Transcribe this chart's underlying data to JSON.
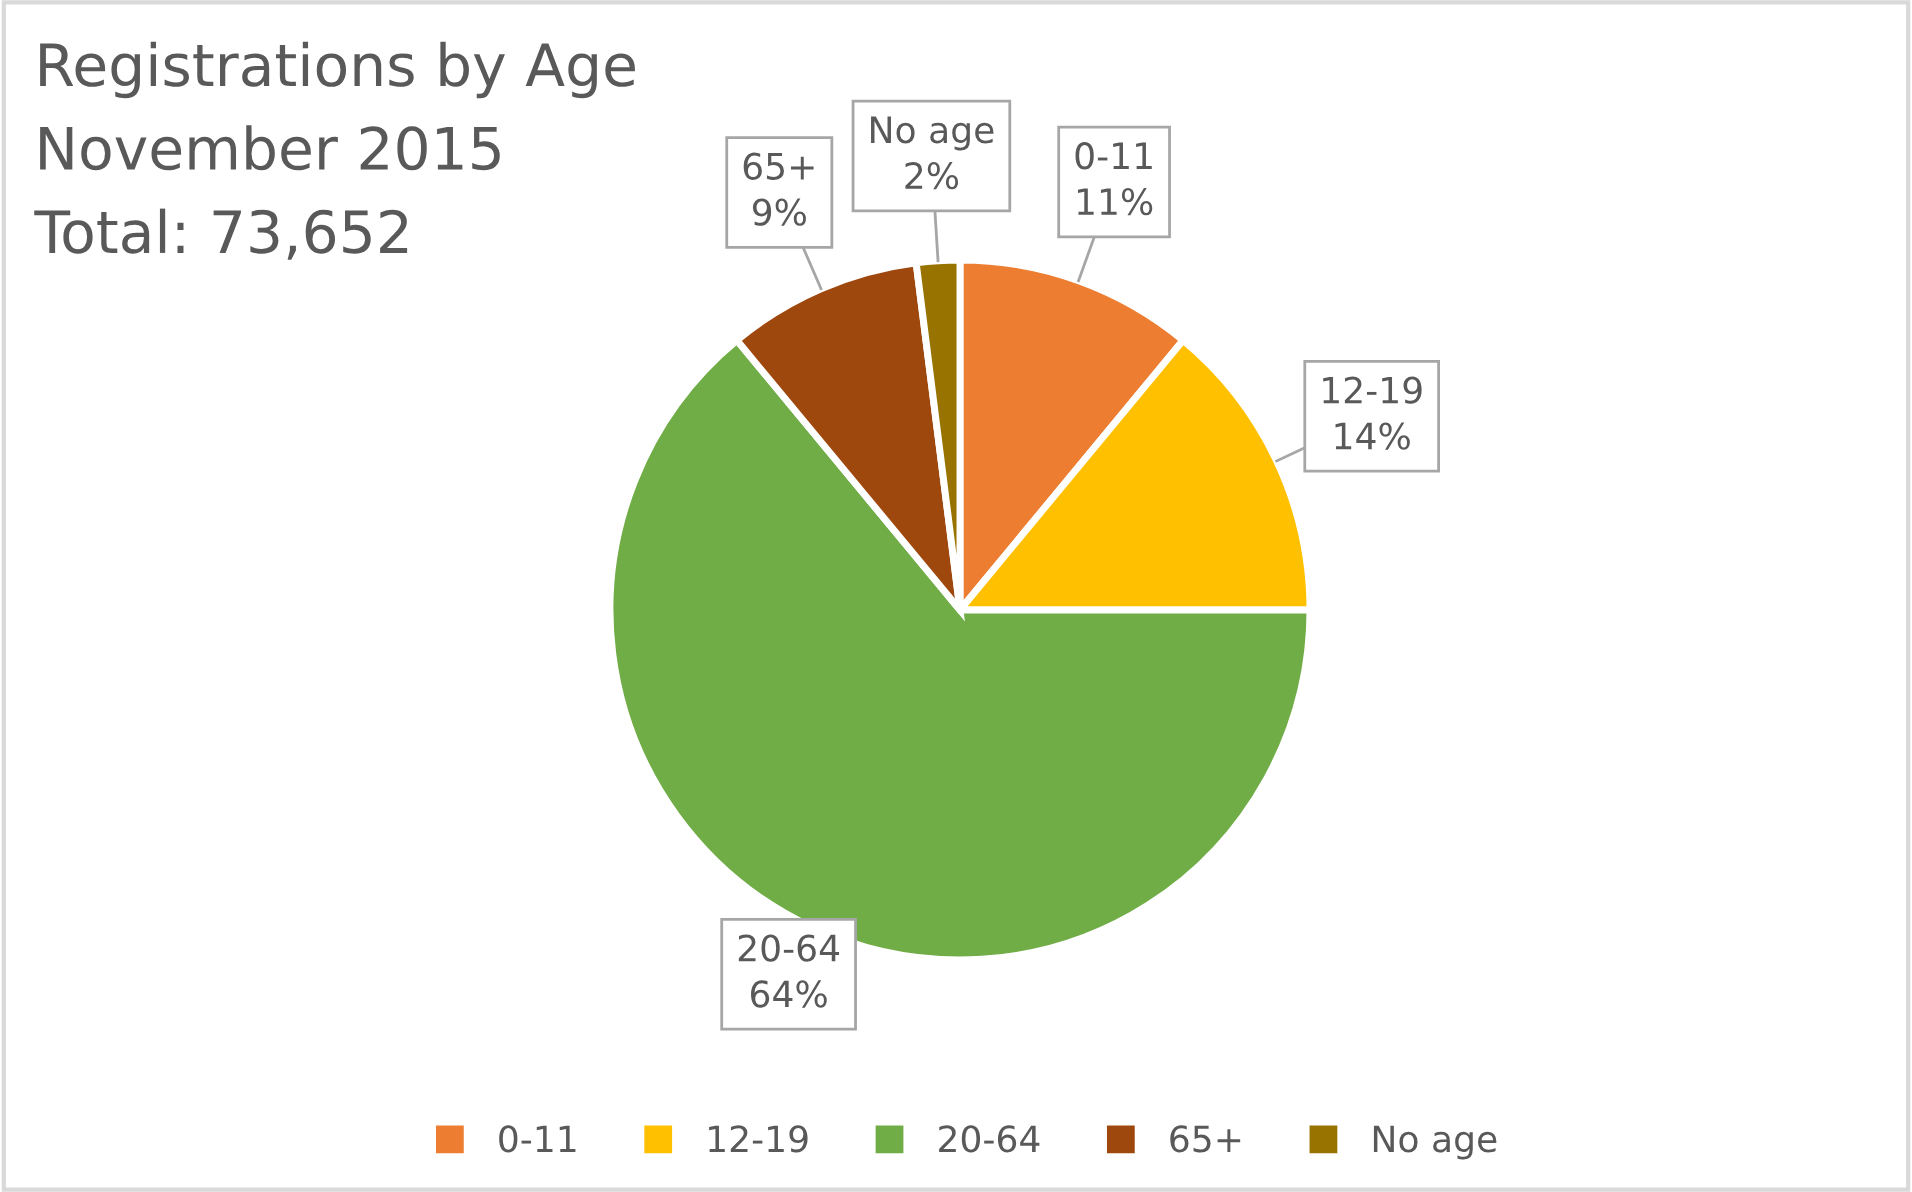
{
  "chart_data": {
    "type": "pie",
    "title": "Registrations by Age",
    "subtitle": "November 2015",
    "annotations": [
      "Total: 73,652"
    ],
    "categories": [
      "0-11",
      "12-19",
      "20-64",
      "65+",
      "No age"
    ],
    "values": [
      11,
      14,
      64,
      9,
      2
    ],
    "value_labels": [
      "11%",
      "14%",
      "64%",
      "9%",
      "2%"
    ],
    "colors": [
      "#ed7d31",
      "#ffc000",
      "#70ad47",
      "#9e480e",
      "#997300"
    ],
    "legend": "bottom"
  }
}
